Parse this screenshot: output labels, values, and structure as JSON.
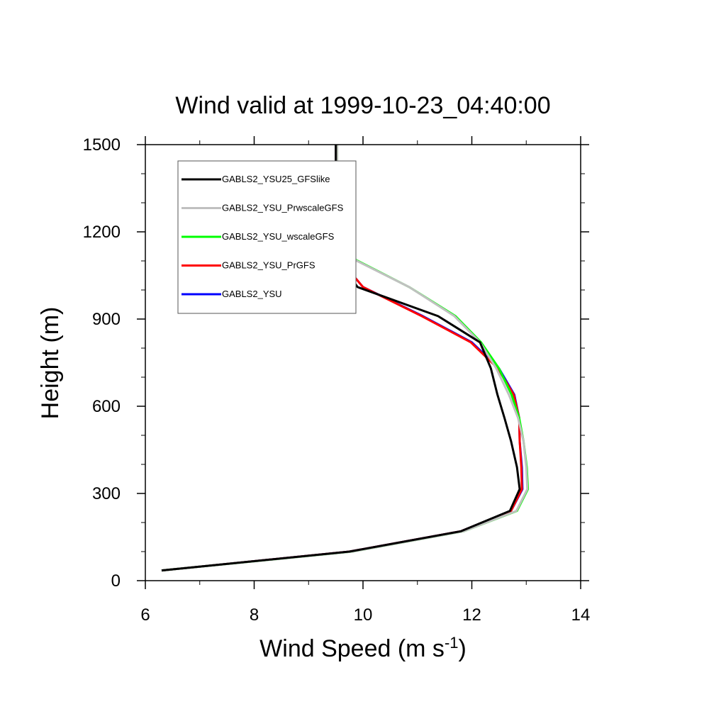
{
  "chart_data": {
    "type": "line",
    "title": "Wind valid at 1999-10-23_04:40:00",
    "xlabel": "Wind Speed (m s",
    "xlabel_sup": "-1",
    "xlabel_end": ")",
    "ylabel": "Height (m)",
    "xlim": [
      6,
      14
    ],
    "ylim": [
      0,
      1500
    ],
    "xticks": [
      6,
      8,
      10,
      12,
      14
    ],
    "yticks": [
      0,
      300,
      600,
      900,
      1200,
      1500
    ],
    "xtick_labels": [
      "6",
      "8",
      "10",
      "12",
      "14"
    ],
    "ytick_labels": [
      "0",
      "300",
      "600",
      "900",
      "1200",
      "1500"
    ],
    "legend_position": "top-left",
    "series": [
      {
        "name": "GABLS2_YSU",
        "color": "#0000ff",
        "x": [
          6.3,
          9.75,
          11.8,
          12.72,
          12.93,
          12.92,
          12.88,
          12.87,
          12.78,
          12.5,
          12.0,
          11.1,
          10.0,
          9.55,
          9.53,
          9.52,
          9.52
        ],
        "y": [
          35,
          100,
          170,
          240,
          315,
          390,
          480,
          560,
          640,
          730,
          820,
          910,
          1010,
          1110,
          1210,
          1340,
          1500
        ]
      },
      {
        "name": "GABLS2_YSU_PrGFS",
        "color": "#ff0000",
        "x": [
          6.3,
          9.75,
          11.8,
          12.72,
          12.92,
          12.91,
          12.88,
          12.87,
          12.77,
          12.48,
          11.98,
          11.08,
          10.0,
          9.55,
          9.53,
          9.52,
          9.52
        ],
        "y": [
          35,
          100,
          170,
          240,
          315,
          390,
          480,
          560,
          640,
          730,
          820,
          910,
          1010,
          1110,
          1210,
          1340,
          1500
        ]
      },
      {
        "name": "GABLS2_YSU_wscaleGFS",
        "color": "#00ff00",
        "x": [
          6.3,
          9.8,
          11.85,
          12.83,
          13.03,
          13.01,
          12.95,
          12.87,
          12.73,
          12.5,
          12.17,
          11.7,
          10.85,
          9.8,
          9.55,
          9.52,
          9.52
        ],
        "y": [
          35,
          100,
          170,
          240,
          315,
          390,
          480,
          560,
          640,
          730,
          820,
          910,
          1010,
          1110,
          1210,
          1340,
          1500
        ]
      },
      {
        "name": "GABLS2_YSU_PrwscaleGFS",
        "color": "#c0c0c0",
        "x": [
          6.3,
          9.8,
          11.85,
          12.82,
          13.02,
          13.0,
          12.95,
          12.85,
          12.68,
          12.45,
          12.15,
          11.68,
          10.85,
          9.78,
          9.55,
          9.52,
          9.52
        ],
        "y": [
          35,
          100,
          170,
          240,
          315,
          390,
          480,
          560,
          640,
          730,
          820,
          910,
          1010,
          1110,
          1210,
          1340,
          1500
        ]
      },
      {
        "name": "GABLS2_YSU25_GFSlike",
        "color": "#000000",
        "x": [
          6.3,
          9.75,
          11.8,
          12.7,
          12.88,
          12.83,
          12.72,
          12.6,
          12.47,
          12.35,
          12.15,
          11.38,
          9.9,
          9.52,
          9.5,
          9.5,
          9.5
        ],
        "y": [
          35,
          100,
          170,
          240,
          315,
          390,
          480,
          560,
          640,
          730,
          820,
          910,
          1010,
          1110,
          1210,
          1340,
          1500
        ]
      }
    ],
    "legend_order": [
      "GABLS2_YSU25_GFSlike",
      "GABLS2_YSU_PrwscaleGFS",
      "GABLS2_YSU_wscaleGFS",
      "GABLS2_YSU_PrGFS",
      "GABLS2_YSU"
    ]
  }
}
